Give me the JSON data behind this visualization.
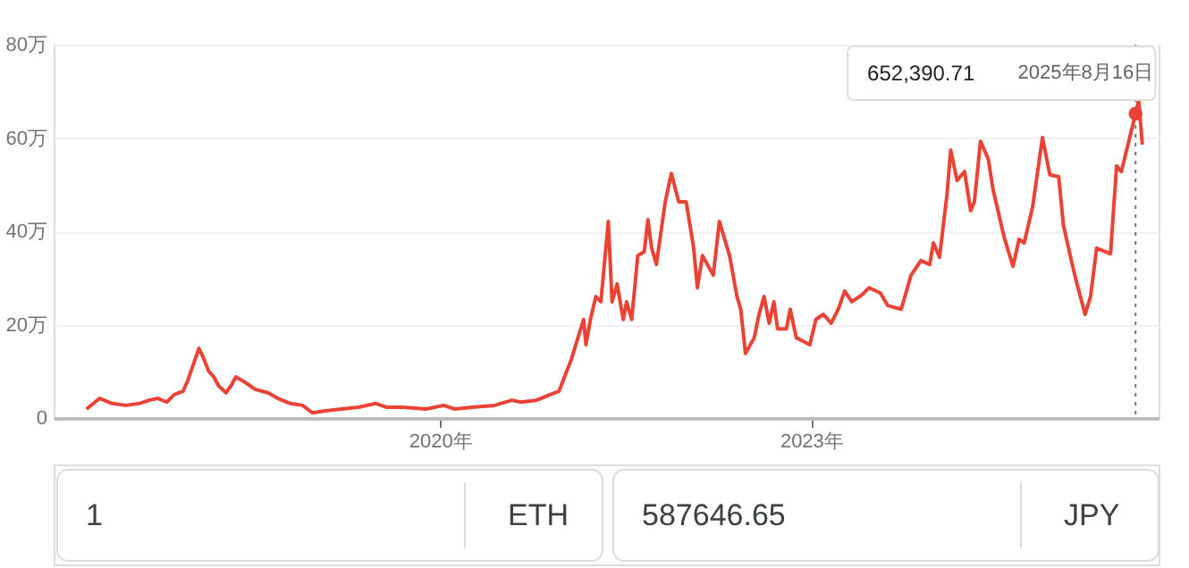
{
  "chart_data": {
    "type": "line",
    "x": [
      "2017-02-21",
      "2017-04-01",
      "2017-05-08",
      "2017-06-17",
      "2017-07-27",
      "2017-08-25",
      "2017-09-20",
      "2017-10-16",
      "2017-11-07",
      "2017-12-03",
      "2017-12-17",
      "2018-01-19",
      "2018-02-03",
      "2018-02-17",
      "2018-03-04",
      "2018-03-18",
      "2018-04-09",
      "2018-04-24",
      "2018-05-08",
      "2018-06-03",
      "2018-07-05",
      "2018-08-11",
      "2018-09-09",
      "2018-10-16",
      "2018-11-21",
      "2018-12-20",
      "2019-01-23",
      "2019-03-15",
      "2019-05-05",
      "2019-06-25",
      "2019-07-27",
      "2019-09-16",
      "2019-11-21",
      "2020-01-12",
      "2020-02-14",
      "2020-04-05",
      "2020-06-10",
      "2020-07-31",
      "2020-08-26",
      "2020-10-12",
      "2020-11-21",
      "2020-12-17",
      "2021-01-23",
      "2021-02-28",
      "2021-03-07",
      "2021-03-21",
      "2021-04-05",
      "2021-04-20",
      "2021-05-12",
      "2021-05-23",
      "2021-06-07",
      "2021-06-25",
      "2021-07-05",
      "2021-07-20",
      "2021-08-07",
      "2021-08-26",
      "2021-09-06",
      "2021-09-17",
      "2021-10-01",
      "2021-10-27",
      "2021-11-14",
      "2021-12-06",
      "2021-12-28",
      "2022-01-19",
      "2022-01-30",
      "2022-02-14",
      "2022-03-18",
      "2022-04-05",
      "2022-05-05",
      "2022-05-27",
      "2022-06-07",
      "2022-06-21",
      "2022-07-17",
      "2022-07-31",
      "2022-08-15",
      "2022-08-30",
      "2022-09-13",
      "2022-09-24",
      "2022-10-20",
      "2022-10-31",
      "2022-11-18",
      "2022-12-28",
      "2023-01-15",
      "2023-02-06",
      "2023-03-01",
      "2023-03-22",
      "2023-04-10",
      "2023-05-01",
      "2023-05-31",
      "2023-06-21",
      "2023-07-24",
      "2023-08-15",
      "2023-09-24",
      "2023-10-23",
      "2023-11-21",
      "2023-12-17",
      "2023-12-28",
      "2024-01-15",
      "2024-02-06",
      "2024-02-17",
      "2024-03-07",
      "2024-03-29",
      "2024-04-16",
      "2024-04-27",
      "2024-05-15",
      "2024-06-07",
      "2024-06-21",
      "2024-07-24",
      "2024-08-19",
      "2024-09-06",
      "2024-09-21",
      "2024-10-16",
      "2024-11-14",
      "2024-12-06",
      "2025-01-01",
      "2025-01-15",
      "2025-02-10",
      "2025-02-24",
      "2025-03-20",
      "2025-04-05",
      "2025-04-23",
      "2025-06-03",
      "2025-06-21",
      "2025-07-05",
      "2025-08-16",
      "2025-08-25",
      "2025-09-05"
    ],
    "series": [
      {
        "color": "#ea4335",
        "values": [
          1.9,
          4.2,
          3.1,
          2.7,
          3.1,
          3.8,
          4.2,
          3.4,
          5.0,
          5.7,
          8.0,
          14.9,
          12.6,
          10.0,
          8.8,
          6.9,
          5.4,
          6.9,
          8.8,
          7.7,
          6.1,
          5.4,
          4.2,
          3.1,
          2.7,
          1.1,
          1.5,
          1.9,
          2.3,
          3.1,
          2.3,
          2.3,
          1.9,
          2.7,
          1.9,
          2.3,
          2.7,
          3.8,
          3.4,
          3.8,
          5.0,
          5.7,
          12.6,
          21.1,
          15.7,
          21.4,
          26.0,
          24.9,
          42.1,
          24.9,
          28.7,
          21.1,
          24.9,
          21.1,
          34.8,
          35.6,
          42.5,
          36.4,
          32.9,
          46.3,
          52.4,
          46.3,
          46.3,
          36.4,
          27.9,
          34.8,
          30.6,
          42.1,
          34.8,
          26.0,
          23.3,
          13.8,
          17.2,
          22.2,
          26.0,
          20.3,
          24.9,
          19.1,
          19.1,
          23.3,
          17.2,
          15.7,
          21.1,
          22.2,
          20.3,
          23.3,
          27.2,
          24.9,
          26.4,
          27.9,
          26.8,
          24.1,
          23.3,
          30.6,
          33.7,
          32.9,
          37.5,
          34.4,
          47.8,
          57.4,
          50.9,
          52.8,
          44.4,
          46.3,
          59.3,
          55.5,
          49.0,
          38.7,
          32.5,
          38.3,
          37.5,
          45.2,
          60.1,
          52.1,
          51.7,
          41.3,
          32.9,
          28.7,
          22.2,
          26.0,
          36.4,
          35.2,
          54.0,
          52.8,
          65.2,
          68.1,
          58.6
        ]
      }
    ],
    "xlim": [
      "2016-11-16",
      "2025-10-23"
    ],
    "xticks": [
      {
        "value": "2020-01-01",
        "label": "2020年"
      },
      {
        "value": "2023-01-01",
        "label": "2023年"
      }
    ],
    "ylim": [
      0,
      80
    ],
    "yticks": [
      0,
      {
        "value": 20,
        "label": "20万"
      },
      {
        "value": 40,
        "label": "40万"
      },
      {
        "value": 60,
        "label": "60万"
      },
      {
        "value": 80,
        "label": "80万"
      }
    ],
    "grid": "y",
    "ref_lines": [
      {
        "axis": "x",
        "value": "2025-08-16",
        "color": "#757575",
        "line_style": "dotted"
      }
    ],
    "annotations": [
      "652,390.71",
      "2025年8月16日",
      "1",
      "ETH",
      "587646.65",
      "JPY"
    ]
  }
}
